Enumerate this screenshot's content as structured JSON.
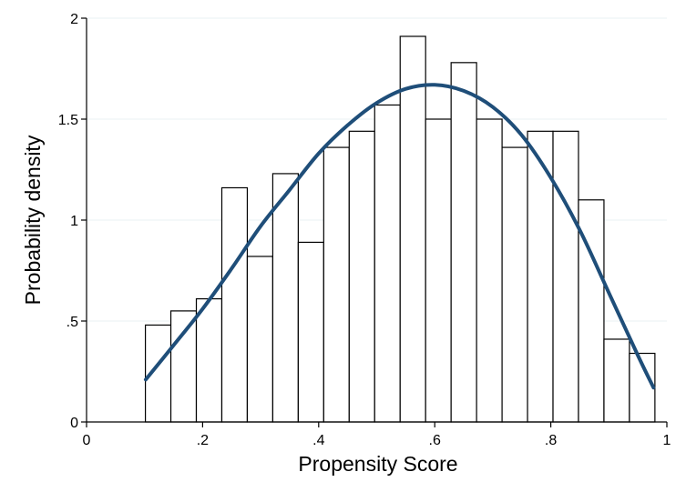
{
  "chart_data": {
    "type": "bar",
    "subtype": "histogram with fitted density curve",
    "xlabel": "Propensity Score",
    "ylabel": "Probability density",
    "xlim": [
      0,
      1
    ],
    "ylim": [
      0,
      2
    ],
    "xticks": [
      {
        "value": 0,
        "label": "0"
      },
      {
        "value": 0.2,
        "label": ".2"
      },
      {
        "value": 0.4,
        "label": ".4"
      },
      {
        "value": 0.6,
        "label": ".6"
      },
      {
        "value": 0.8,
        "label": ".8"
      },
      {
        "value": 1,
        "label": "1"
      }
    ],
    "yticks": [
      {
        "value": 0,
        "label": "0"
      },
      {
        "value": 0.5,
        "label": ".5"
      },
      {
        "value": 1,
        "label": "1"
      },
      {
        "value": 1.5,
        "label": "1.5"
      },
      {
        "value": 2,
        "label": "2"
      }
    ],
    "grid": "horizontal",
    "bin_width": 0.0439,
    "bins": [
      {
        "start": 0.1014,
        "value": 0.48
      },
      {
        "start": 0.1453,
        "value": 0.55
      },
      {
        "start": 0.1892,
        "value": 0.61
      },
      {
        "start": 0.2331,
        "value": 1.16
      },
      {
        "start": 0.277,
        "value": 0.82
      },
      {
        "start": 0.3209,
        "value": 1.23
      },
      {
        "start": 0.3648,
        "value": 0.89
      },
      {
        "start": 0.4087,
        "value": 1.36
      },
      {
        "start": 0.4526,
        "value": 1.44
      },
      {
        "start": 0.4965,
        "value": 1.57
      },
      {
        "start": 0.5404,
        "value": 1.91
      },
      {
        "start": 0.5843,
        "value": 1.5
      },
      {
        "start": 0.6282,
        "value": 1.78
      },
      {
        "start": 0.6721,
        "value": 1.5
      },
      {
        "start": 0.716,
        "value": 1.36
      },
      {
        "start": 0.7599,
        "value": 1.44
      },
      {
        "start": 0.8038,
        "value": 1.44
      },
      {
        "start": 0.8477,
        "value": 1.1
      },
      {
        "start": 0.8916,
        "value": 0.41
      },
      {
        "start": 0.9355,
        "value": 0.34
      }
    ],
    "curve": {
      "color": "#1f4e79",
      "x": [
        0.102,
        0.15,
        0.2,
        0.25,
        0.3,
        0.35,
        0.4,
        0.45,
        0.5,
        0.55,
        0.6,
        0.65,
        0.7,
        0.75,
        0.8,
        0.85,
        0.9,
        0.95,
        0.977
      ],
      "y": [
        0.21,
        0.38,
        0.56,
        0.76,
        0.97,
        1.15,
        1.33,
        1.47,
        1.58,
        1.65,
        1.67,
        1.64,
        1.56,
        1.42,
        1.21,
        0.95,
        0.64,
        0.33,
        0.17
      ]
    },
    "bar_fill": "#ffffff",
    "bar_stroke": "#000000"
  }
}
